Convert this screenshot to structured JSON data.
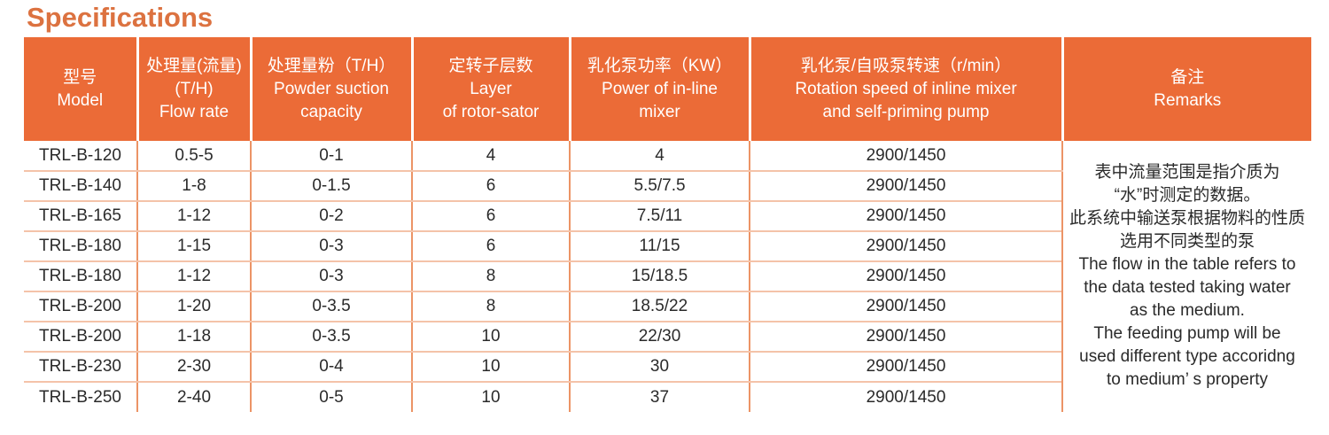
{
  "page": {
    "title": "Specifications"
  },
  "theme": {
    "header_bg": "#EB6B37",
    "title_color": "#DC7240",
    "col_line": "#EC9466",
    "row_line": "#F4C3A9",
    "header_text": "#FFFFFF",
    "body_text": "#2A2A2A"
  },
  "table": {
    "headers": [
      "型号\nModel",
      "处理量(流量)\n(T/H)\nFlow rate",
      "处理量粉（T/H）\nPowder suction\ncapacity",
      "定转子层数\nLayer\nof rotor-sator",
      "乳化泵功率（KW）\nPower of in-line\nmixer",
      "乳化泵/自吸泵转速（r/min）\nRotation speed of inline mixer\nand self-priming pump",
      "备注\nRemarks"
    ],
    "column_ids": [
      "model",
      "flow-rate",
      "powder-capacity",
      "rotor-stator-layers",
      "mixer-power",
      "rotation-speed"
    ],
    "rows": [
      [
        "TRL-B-120",
        "0.5-5",
        "0-1",
        "4",
        "4",
        "2900/1450"
      ],
      [
        "TRL-B-140",
        "1-8",
        "0-1.5",
        "6",
        "5.5/7.5",
        "2900/1450"
      ],
      [
        "TRL-B-165",
        "1-12",
        "0-2",
        "6",
        "7.5/11",
        "2900/1450"
      ],
      [
        "TRL-B-180",
        "1-15",
        "0-3",
        "6",
        "11/15",
        "2900/1450"
      ],
      [
        "TRL-B-180",
        "1-12",
        "0-3",
        "8",
        "15/18.5",
        "2900/1450"
      ],
      [
        "TRL-B-200",
        "1-20",
        "0-3.5",
        "8",
        "18.5/22",
        "2900/1450"
      ],
      [
        "TRL-B-200",
        "1-18",
        "0-3.5",
        "10",
        "22/30",
        "2900/1450"
      ],
      [
        "TRL-B-230",
        "2-30",
        "0-4",
        "10",
        "30",
        "2900/1450"
      ],
      [
        "TRL-B-250",
        "2-40",
        "0-5",
        "10",
        "37",
        "2900/1450"
      ]
    ],
    "remarks": "表中流量范围是指介质为\n“水”时测定的数据。\n此系统中输送泵根据物料的性质\n选用不同类型的泵\nThe flow in the table refers to\nthe data tested taking water\nas the medium.\nThe feeding pump will be\nused different type accoridng\nto medium’ s property"
  }
}
